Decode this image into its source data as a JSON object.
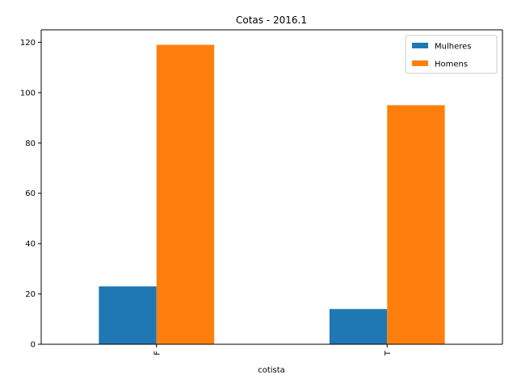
{
  "chart_data": {
    "type": "bar",
    "title": "Cotas - 2016.1",
    "xlabel": "cotista",
    "ylabel": "",
    "categories": [
      "F",
      "T"
    ],
    "series": [
      {
        "name": "Mulheres",
        "values": [
          23,
          14
        ],
        "color": "#1f77b4"
      },
      {
        "name": "Homens",
        "values": [
          119,
          95
        ],
        "color": "#ff7f0e"
      }
    ],
    "ylim": [
      0,
      124.95
    ],
    "yticks": [
      0,
      20,
      40,
      60,
      80,
      100,
      120
    ],
    "grid": false,
    "legend_position": "top-right",
    "x_tick_rotation": "vertical"
  }
}
